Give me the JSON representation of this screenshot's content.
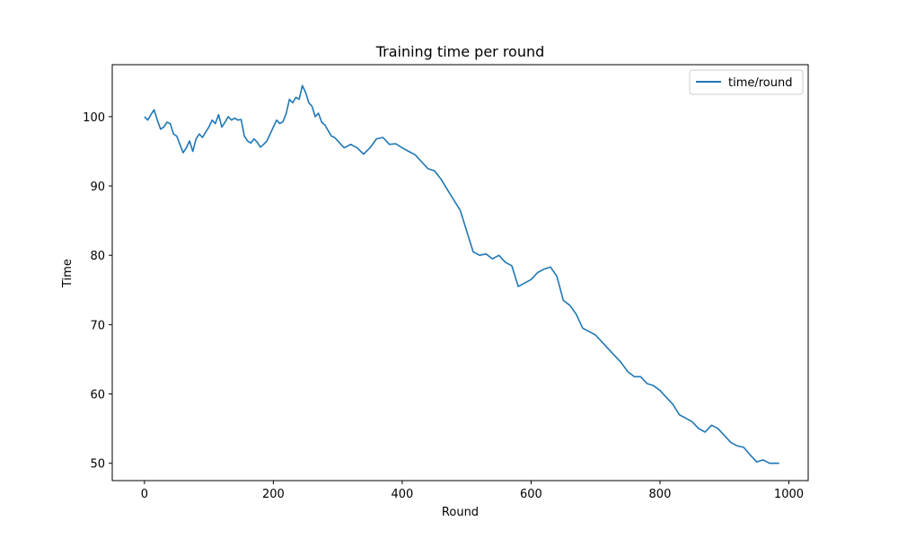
{
  "chart_data": {
    "type": "line",
    "title": "Training time per round",
    "xlabel": "Round",
    "ylabel": "Time",
    "xlim": [
      -50,
      1030
    ],
    "ylim": [
      47.5,
      107.5
    ],
    "xticks": [
      0,
      200,
      400,
      600,
      800,
      1000
    ],
    "yticks": [
      50,
      60,
      70,
      80,
      90,
      100
    ],
    "xtick_labels": [
      "0",
      "200",
      "400",
      "600",
      "800",
      "1000"
    ],
    "ytick_labels": [
      "50",
      "60",
      "70",
      "80",
      "90",
      "100"
    ],
    "grid": false,
    "legend_position": "top-right",
    "series": [
      {
        "name": "time/round",
        "color": "#1f77b4",
        "x": [
          0,
          5,
          10,
          15,
          20,
          25,
          30,
          35,
          40,
          45,
          50,
          55,
          60,
          65,
          70,
          75,
          80,
          85,
          90,
          95,
          100,
          105,
          110,
          115,
          120,
          125,
          130,
          135,
          140,
          145,
          150,
          155,
          160,
          165,
          170,
          175,
          180,
          185,
          190,
          195,
          200,
          205,
          210,
          215,
          220,
          225,
          230,
          235,
          240,
          245,
          250,
          255,
          260,
          265,
          270,
          275,
          280,
          285,
          290,
          295,
          300,
          310,
          320,
          330,
          340,
          350,
          360,
          370,
          380,
          390,
          400,
          410,
          420,
          430,
          440,
          450,
          460,
          470,
          480,
          490,
          500,
          510,
          520,
          530,
          540,
          550,
          560,
          570,
          580,
          590,
          600,
          610,
          620,
          630,
          640,
          650,
          660,
          670,
          680,
          690,
          700,
          710,
          720,
          730,
          740,
          750,
          760,
          770,
          780,
          790,
          800,
          810,
          820,
          830,
          840,
          850,
          860,
          870,
          880,
          890,
          900,
          910,
          920,
          930,
          940,
          950,
          960,
          970,
          985
        ],
        "y": [
          100,
          99.5,
          100.3,
          101,
          99.5,
          98.2,
          98.5,
          99.2,
          99.0,
          97.5,
          97.2,
          96.0,
          94.8,
          95.5,
          96.5,
          95.0,
          96.8,
          97.5,
          97.0,
          97.8,
          98.5,
          99.5,
          99.0,
          100.3,
          98.5,
          99.2,
          100.0,
          99.5,
          99.8,
          99.5,
          99.6,
          97.2,
          96.5,
          96.2,
          96.8,
          96.3,
          95.6,
          96.0,
          96.5,
          97.5,
          98.5,
          99.5,
          99.0,
          99.3,
          100.5,
          102.5,
          102.0,
          102.8,
          102.5,
          104.5,
          103.5,
          102.0,
          101.5,
          100.0,
          100.5,
          99.2,
          98.8,
          98.0,
          97.2,
          97.0,
          96.5,
          95.5,
          96.0,
          95.5,
          94.6,
          95.5,
          96.8,
          97.0,
          96.0,
          96.1,
          95.5,
          95.0,
          94.5,
          93.5,
          92.5,
          92.2,
          91.0,
          89.5,
          88.0,
          86.5,
          83.5,
          80.5,
          80.0,
          80.2,
          79.5,
          80.0,
          79.0,
          78.5,
          75.5,
          76.0,
          76.5,
          77.5,
          78.0,
          78.3,
          77.0,
          73.5,
          72.8,
          71.5,
          69.5,
          69.0,
          68.5,
          67.5,
          66.5,
          65.5,
          64.5,
          63.2,
          62.5,
          62.5,
          61.5,
          61.2,
          60.5,
          59.5,
          58.5,
          57.0,
          56.5,
          56.0,
          55.0,
          54.5,
          55.5,
          55.0,
          54.0,
          53.0,
          52.5,
          52.3,
          51.2,
          50.2,
          50.5,
          50.0,
          50.0
        ]
      }
    ]
  }
}
